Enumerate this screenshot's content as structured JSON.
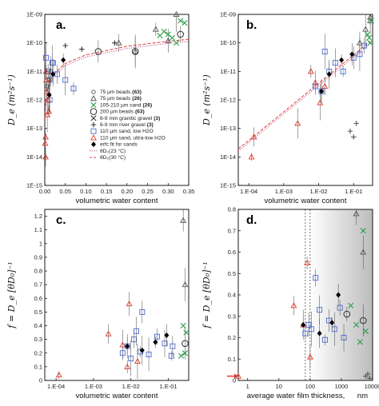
{
  "chart_data": [
    {
      "panel": "a.",
      "type": "scatter",
      "ylabel": "D_e (m²s⁻¹)",
      "xlabel": "volumetric water content",
      "xscale": "linear",
      "yscale": "log",
      "xlim": [
        0,
        0.35
      ],
      "ylim": [
        1e-15,
        1e-09
      ],
      "xticks": [
        "0.00",
        "0.05",
        "0.10",
        "0.15",
        "0.20",
        "0.25",
        "0.30",
        "0.35"
      ],
      "yticks": [
        "1E-09",
        "1E-10",
        "1E-11",
        "1E-12",
        "1E-13",
        "1E-14",
        "1E-15"
      ],
      "legend": [
        {
          "label": "75 µm beads",
          "ref": "(63)",
          "marker": "circle-small",
          "color": "#555555"
        },
        {
          "label": "75 µm beads",
          "ref": "(26)",
          "marker": "triangle",
          "color": "#555555"
        },
        {
          "label": "105-210 µm sand",
          "ref": "(26)",
          "marker": "x",
          "color": "#2e9e4a"
        },
        {
          "label": "200 µm beads",
          "ref": "(63)",
          "marker": "circle",
          "color": "#333333"
        },
        {
          "label": "6-9 mm granitic gravel",
          "ref": "(3)",
          "marker": "x",
          "color": "#333333"
        },
        {
          "label": "6-9 mm river gravel",
          "ref": "(3)",
          "marker": "plus",
          "color": "#333333"
        },
        {
          "label": "110 µm sand,  low H2O",
          "ref": "",
          "marker": "square",
          "color": "#4a6ad0"
        },
        {
          "label": "110 µm sand, ultra-low H2O",
          "ref": "",
          "marker": "triangle",
          "color": "#e03a2a"
        },
        {
          "label": "erfc fit for sands",
          "ref": "",
          "marker": "diamond",
          "color": "#000000"
        },
        {
          "label": "θD₀(23 °C)",
          "ref": "",
          "marker": "dotted-line",
          "color": "#c05080"
        },
        {
          "label": "θD₀(30 °C)",
          "ref": "",
          "marker": "dashed-line",
          "color": "#e04040"
        }
      ],
      "series": [
        {
          "marker": "circle-small",
          "color": "#555555",
          "points": [
            [
              0.005,
              3e-12
            ],
            [
              0.01,
              5e-12
            ],
            [
              0.015,
              1e-11
            ]
          ]
        },
        {
          "marker": "triangle",
          "color": "#555555",
          "points": [
            [
              0.27,
              3e-10
            ],
            [
              0.3,
              1.2e-10
            ],
            [
              0.32,
              1e-09
            ],
            [
              0.18,
              1e-10
            ],
            [
              0.22,
              5e-11
            ]
          ]
        },
        {
          "marker": "x",
          "color": "#2e9e4a",
          "points": [
            [
              0.3,
              2e-10
            ],
            [
              0.31,
              1.5e-10
            ],
            [
              0.32,
              1e-10
            ],
            [
              0.28,
              1.8e-10
            ],
            [
              0.29,
              2.5e-10
            ],
            [
              0.33,
              6e-10
            ],
            [
              0.34,
              5e-10
            ]
          ]
        },
        {
          "marker": "circle",
          "color": "#333333",
          "points": [
            [
              0.13,
              5e-11
            ],
            [
              0.22,
              5e-11
            ],
            [
              0.33,
              2e-10
            ]
          ]
        },
        {
          "marker": "plus",
          "color": "#333333",
          "points": [
            [
              0.05,
              8e-11
            ],
            [
              0.09,
              6e-11
            ],
            [
              0.17,
              1e-10
            ]
          ]
        },
        {
          "marker": "square",
          "color": "#4a6ad0",
          "points": [
            [
              0.003,
              3e-11
            ],
            [
              0.008,
              1e-11
            ],
            [
              0.012,
              5e-12
            ],
            [
              0.02,
              2e-11
            ],
            [
              0.03,
              8e-12
            ],
            [
              0.05,
              5e-12
            ],
            [
              0.07,
              2.5e-12
            ],
            [
              0.012,
              1e-12
            ],
            [
              0.018,
              2e-11
            ]
          ]
        },
        {
          "marker": "triangle",
          "color": "#e03a2a",
          "points": [
            [
              0.002,
              5e-14
            ],
            [
              0.002,
              1e-14
            ],
            [
              0.001,
              3e-14
            ],
            [
              0.003,
              1e-11
            ],
            [
              0.004,
              5e-12
            ],
            [
              0.006,
              3e-13
            ],
            [
              0.005,
              2e-12
            ],
            [
              0.008,
              1e-12
            ],
            [
              0.01,
              4e-13
            ]
          ]
        },
        {
          "marker": "diamond",
          "color": "#000000",
          "points": [
            [
              0.045,
              2.5e-11
            ],
            [
              0.02,
              8e-12
            ],
            [
              0.011,
              1.5e-12
            ]
          ]
        }
      ],
      "lines": [
        {
          "style": "dotted",
          "color": "#c05080",
          "x": [
            0.0005,
            0.002,
            0.01,
            0.02,
            0.05,
            0.1,
            0.2,
            0.3,
            0.35
          ],
          "y": [
            1.6e-13,
            6.4e-13,
            3.2e-12,
            6.4e-12,
            1.6e-11,
            3.2e-11,
            6.4e-11,
            9.6e-11,
            1.12e-10
          ]
        },
        {
          "style": "dashed",
          "color": "#e04040",
          "x": [
            0.0005,
            0.002,
            0.01,
            0.02,
            0.05,
            0.1,
            0.2,
            0.3,
            0.35
          ],
          "y": [
            1.9e-13,
            7.6e-13,
            3.8e-12,
            7.6e-12,
            1.9e-11,
            3.8e-11,
            7.6e-11,
            1.14e-10,
            1.33e-10
          ]
        }
      ]
    },
    {
      "panel": "b.",
      "type": "scatter",
      "ylabel": "D_e (m²s⁻¹)",
      "xlabel": "volumetric water content",
      "xscale": "log",
      "yscale": "log",
      "xlim": [
        5e-05,
        0.35
      ],
      "ylim": [
        1e-15,
        1e-09
      ],
      "xticks": [
        "1.E-04",
        "1.E-03",
        "1.E-02",
        "1.E-01"
      ],
      "yticks": [
        "1E-09",
        "1E-10",
        "1E-11",
        "1E-12",
        "1E-13",
        "1E-14",
        "1E-15"
      ],
      "series": [
        {
          "marker": "triangle",
          "color": "#e03a2a",
          "points": [
            [
              0.00012,
              1e-14
            ],
            [
              0.00014,
              5e-14
            ],
            [
              0.0025,
              1.5e-13
            ],
            [
              0.006,
              1e-11
            ],
            [
              0.008,
              4e-12
            ],
            [
              0.011,
              8e-13
            ],
            [
              0.015,
              3e-12
            ]
          ]
        },
        {
          "marker": "square",
          "color": "#4a6ad0",
          "points": [
            [
              0.008,
              3e-12
            ],
            [
              0.012,
              2e-12
            ],
            [
              0.015,
              5e-11
            ],
            [
              0.02,
              1e-11
            ],
            [
              0.03,
              2e-11
            ],
            [
              0.05,
              1e-11
            ],
            [
              0.1,
              3e-11
            ],
            [
              0.15,
              4e-11
            ],
            [
              0.2,
              8e-11
            ]
          ]
        },
        {
          "marker": "diamond",
          "color": "#000000",
          "points": [
            [
              0.012,
              2e-12
            ],
            [
              0.02,
              8e-12
            ],
            [
              0.045,
              2.5e-11
            ],
            [
              0.09,
              4e-11
            ]
          ]
        },
        {
          "marker": "triangle",
          "color": "#555555",
          "points": [
            [
              0.15,
              1e-10
            ],
            [
              0.22,
              3e-10
            ],
            [
              0.3,
              8e-10
            ],
            [
              0.3,
              6e-10
            ]
          ]
        },
        {
          "marker": "x",
          "color": "#2e9e4a",
          "points": [
            [
              0.25,
              2e-10
            ],
            [
              0.28,
              1.5e-10
            ],
            [
              0.3,
              1e-10
            ],
            [
              0.32,
              6e-10
            ]
          ]
        },
        {
          "marker": "plus",
          "color": "#555555",
          "points": [
            [
              0.08,
              8e-14
            ],
            [
              0.1,
              5e-14
            ],
            [
              0.12,
              1.5e-13
            ]
          ]
        }
      ],
      "lines": [
        {
          "style": "dotted",
          "color": "#c05080",
          "x": [
            5e-05,
            0.0001,
            0.001,
            0.01,
            0.1,
            0.3
          ],
          "y": [
            1.6e-14,
            3.2e-14,
            3.2e-13,
            3.2e-12,
            3.2e-11,
            9.6e-11
          ]
        },
        {
          "style": "dashed",
          "color": "#e04040",
          "x": [
            5e-05,
            0.0001,
            0.001,
            0.01,
            0.1,
            0.3
          ],
          "y": [
            1.9e-14,
            3.8e-14,
            3.8e-13,
            3.8e-12,
            3.8e-11,
            1.14e-10
          ]
        }
      ]
    },
    {
      "panel": "c.",
      "type": "scatter",
      "ylabel": "f = D_e [θD₀]⁻¹",
      "xlabel": "volumetric water content",
      "xscale": "log",
      "yscale": "linear",
      "xlim": [
        5e-05,
        0.35
      ],
      "ylim": [
        0,
        1.25
      ],
      "xticks": [
        "1.E-04",
        "1.E-03",
        "1.E-02",
        "1.E-01"
      ],
      "yticks": [
        "0",
        "0.1",
        "0.2",
        "0.3",
        "0.4",
        "0.5",
        "0.6",
        "0.7",
        "0.8",
        "0.9",
        "1",
        "1.1",
        "1.2"
      ],
      "series": [
        {
          "marker": "triangle",
          "color": "#e03a2a",
          "points": [
            [
              0.00012,
              0.04
            ],
            [
              0.0025,
              0.34
            ],
            [
              0.006,
              0.26
            ],
            [
              0.008,
              0.1
            ],
            [
              0.009,
              0.56
            ],
            [
              0.015,
              0.14
            ]
          ]
        },
        {
          "marker": "square",
          "color": "#4a6ad0",
          "points": [
            [
              0.006,
              0.2
            ],
            [
              0.008,
              0.25
            ],
            [
              0.01,
              0.16
            ],
            [
              0.012,
              0.3
            ],
            [
              0.014,
              0.36
            ],
            [
              0.018,
              0.21
            ],
            [
              0.02,
              0.5
            ],
            [
              0.03,
              0.19
            ],
            [
              0.05,
              0.32
            ],
            [
              0.08,
              0.27
            ],
            [
              0.12,
              0.18
            ],
            [
              0.13,
              0.25
            ]
          ]
        },
        {
          "marker": "diamond",
          "color": "#000000",
          "points": [
            [
              0.008,
              0.25
            ],
            [
              0.02,
              0.22
            ],
            [
              0.045,
              0.28
            ],
            [
              0.09,
              0.33
            ]
          ]
        },
        {
          "marker": "triangle",
          "color": "#555555",
          "points": [
            [
              0.25,
              1.17
            ],
            [
              0.28,
              0.7
            ]
          ]
        },
        {
          "marker": "x",
          "color": "#2e9e4a",
          "points": [
            [
              0.25,
              0.4
            ],
            [
              0.22,
              0.18
            ],
            [
              0.28,
              0.2
            ],
            [
              0.3,
              0.35
            ]
          ]
        },
        {
          "marker": "circle",
          "color": "#333333",
          "points": [
            [
              0.28,
              0.27
            ]
          ]
        }
      ]
    },
    {
      "panel": "d.",
      "type": "scatter",
      "ylabel": "f = D_e [θD₀]⁻¹",
      "xlabel": "average water film thickness,",
      "xunit": "nm",
      "xscale": "log",
      "yscale": "linear",
      "xlim": [
        0.5,
        10000
      ],
      "ylim": [
        0,
        0.8
      ],
      "xticks": [
        "1",
        "10",
        "100",
        "1000",
        "10000"
      ],
      "yticks": [
        "0",
        "0.1",
        "0.2",
        "0.3",
        "0.4",
        "0.5",
        "0.6",
        "0.7",
        "0.8"
      ],
      "series": [
        {
          "marker": "triangle",
          "color": "#e03a2a",
          "points": [
            [
              0.5,
              0.02
            ],
            [
              30,
              0.35
            ],
            [
              60,
              0.26
            ],
            [
              80,
              0.55
            ],
            [
              100,
              0.11
            ]
          ]
        },
        {
          "marker": "square",
          "color": "#4a6ad0",
          "points": [
            [
              70,
              0.22
            ],
            [
              90,
              0.26
            ],
            [
              110,
              0.24
            ],
            [
              150,
              0.48
            ],
            [
              200,
              0.33
            ],
            [
              300,
              0.19
            ],
            [
              400,
              0.28
            ],
            [
              600,
              0.24
            ],
            [
              900,
              0.34
            ],
            [
              1200,
              0.2
            ]
          ]
        },
        {
          "marker": "diamond",
          "color": "#000000",
          "points": [
            [
              60,
              0.26
            ],
            [
              200,
              0.22
            ],
            [
              500,
              0.27
            ],
            [
              800,
              0.4
            ]
          ]
        },
        {
          "marker": "triangle",
          "color": "#555555",
          "points": [
            [
              3000,
              0.78
            ],
            [
              5000,
              0.6
            ]
          ]
        },
        {
          "marker": "x",
          "color": "#2e9e4a",
          "points": [
            [
              2000,
              0.35
            ],
            [
              3000,
              0.26
            ],
            [
              4000,
              0.18
            ],
            [
              5000,
              0.7
            ],
            [
              6000,
              0.23
            ]
          ]
        },
        {
          "marker": "circle",
          "color": "#333333",
          "points": [
            [
              5000,
              0.28
            ],
            [
              1500,
              0.31
            ]
          ]
        },
        {
          "marker": "plus",
          "color": "#555555",
          "points": [
            [
              6000,
              0.02
            ],
            [
              7000,
              0.03
            ],
            [
              8000,
              0.01
            ]
          ]
        }
      ]
    }
  ]
}
